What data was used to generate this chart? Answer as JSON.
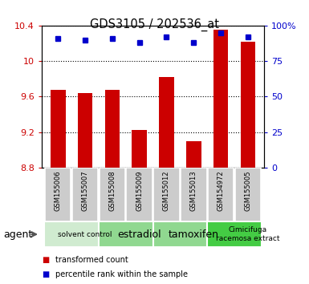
{
  "title": "GDS3105 / 202536_at",
  "samples": [
    "GSM155006",
    "GSM155007",
    "GSM155008",
    "GSM155009",
    "GSM155012",
    "GSM155013",
    "GSM154972",
    "GSM155005"
  ],
  "red_values": [
    9.68,
    9.64,
    9.68,
    9.22,
    9.82,
    9.1,
    10.35,
    10.22
  ],
  "blue_values": [
    91,
    90,
    91,
    88,
    92,
    88,
    95,
    92
  ],
  "ylim_left": [
    8.8,
    10.4
  ],
  "ylim_right": [
    0,
    100
  ],
  "yticks_left": [
    8.8,
    9.2,
    9.6,
    10.0,
    10.4
  ],
  "yticks_right": [
    0,
    25,
    50,
    75,
    100
  ],
  "ytick_labels_left": [
    "8.8",
    "9.2",
    "9.6",
    "10",
    "10.4"
  ],
  "ytick_labels_right": [
    "0",
    "25",
    "50",
    "75",
    "100%"
  ],
  "agent_groups": [
    {
      "label": "solvent control",
      "start": 0,
      "end": 2,
      "color": "#d0ebd0",
      "fontsize": 6.5
    },
    {
      "label": "estradiol",
      "start": 2,
      "end": 4,
      "color": "#90d890",
      "fontsize": 9
    },
    {
      "label": "tamoxifen",
      "start": 4,
      "end": 6,
      "color": "#90d890",
      "fontsize": 9
    },
    {
      "label": "Cimicifuga\nracemosa extract",
      "start": 6,
      "end": 8,
      "color": "#44cc44",
      "fontsize": 6.5
    }
  ],
  "red_color": "#cc0000",
  "blue_color": "#0000cc",
  "bar_width": 0.55,
  "sample_bg_color": "#cccccc",
  "legend_red_label": "transformed count",
  "legend_blue_label": "percentile rank within the sample"
}
